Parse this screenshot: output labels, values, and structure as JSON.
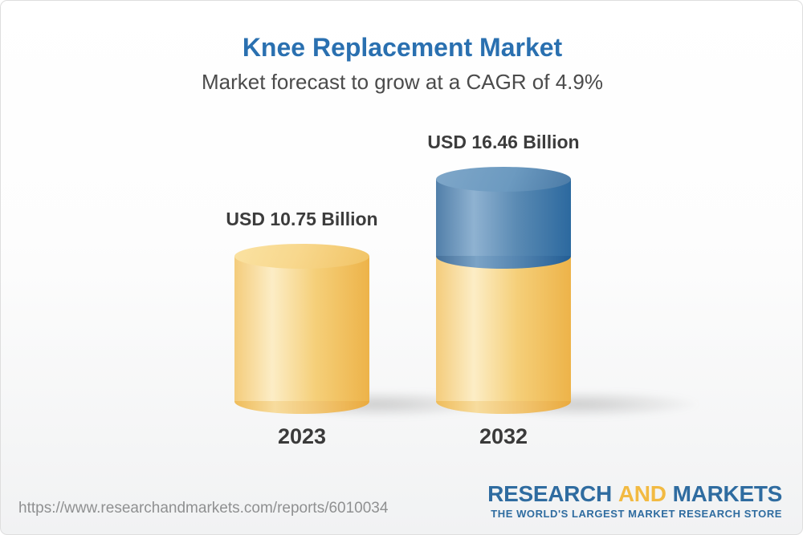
{
  "header": {
    "title": "Knee Replacement Market",
    "subtitle": "Market forecast to grow at a CAGR of 4.9%"
  },
  "chart_data": {
    "type": "bar",
    "subtype": "3d-cylinder",
    "categories": [
      "2023",
      "2032"
    ],
    "values": [
      10.75,
      16.46
    ],
    "value_labels": [
      "USD 10.75 Billion",
      "USD 16.46 Billion"
    ],
    "unit": "USD Billion",
    "title": "Knee Replacement Market",
    "subtitle": "Market forecast to grow at a CAGR of 4.9%",
    "cagr_percent": 4.9,
    "legend_position": "none",
    "axes_shown": false,
    "grid": false,
    "colors": {
      "base_segment": "#f5c767",
      "growth_segment": "#4b7eac",
      "label_text": "#3c3c3c"
    },
    "notes": "2032 bar is stacked: yellow base equals the 2023 value, blue top section is the forecast growth"
  },
  "footer": {
    "url": "https://www.researchandmarkets.com/reports/6010034",
    "logo": {
      "word1": "RESEARCH",
      "word2": "AND",
      "word3": "MARKETS",
      "tagline": "THE WORLD'S LARGEST MARKET RESEARCH STORE",
      "blue": "#2f6ca0",
      "gold": "#f2ba42"
    }
  },
  "theme": {
    "title_color": "#2a70b0",
    "subtitle_color": "#4b4b4b",
    "background_bottom": "#f1f2f3"
  }
}
